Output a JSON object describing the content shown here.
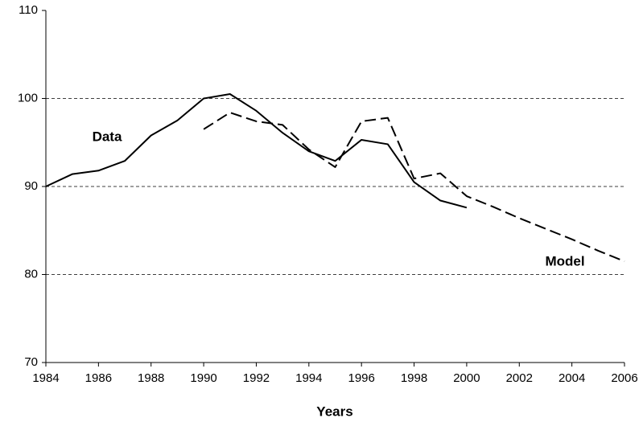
{
  "chart_data": {
    "type": "line",
    "x_label": "Years",
    "x": [
      1984,
      1985,
      1986,
      1987,
      1988,
      1989,
      1990,
      1991,
      1992,
      1993,
      1994,
      1995,
      1996,
      1997,
      1998,
      1999,
      2000,
      2001,
      2002,
      2003,
      2004,
      2005,
      2006
    ],
    "series": [
      {
        "name": "Data",
        "color": "#000000",
        "style": "solid",
        "values": [
          90,
          91.4,
          91.8,
          92.9,
          95.8,
          97.5,
          100,
          100.5,
          98.6,
          96.1,
          94.0,
          92.9,
          95.3,
          94.8,
          90.5,
          88.4,
          87.6,
          null,
          null,
          null,
          null,
          null,
          null
        ]
      },
      {
        "name": "Model",
        "color": "#000000",
        "style": "dashed",
        "values": [
          null,
          null,
          null,
          null,
          null,
          null,
          96.5,
          98.4,
          97.4,
          97.0,
          94.2,
          92.2,
          97.4,
          97.8,
          90.9,
          91.5,
          88.9,
          87.7,
          86.4,
          85.2,
          84.0,
          82.7,
          81.5
        ]
      }
    ],
    "xlim": [
      1984,
      2006
    ],
    "xticks": [
      1984,
      1986,
      1988,
      1990,
      1992,
      1994,
      1996,
      1998,
      2000,
      2002,
      2004,
      2006
    ],
    "ylim": [
      70,
      110
    ],
    "yticks": [
      70,
      80,
      90,
      100,
      110
    ],
    "grid": true
  }
}
